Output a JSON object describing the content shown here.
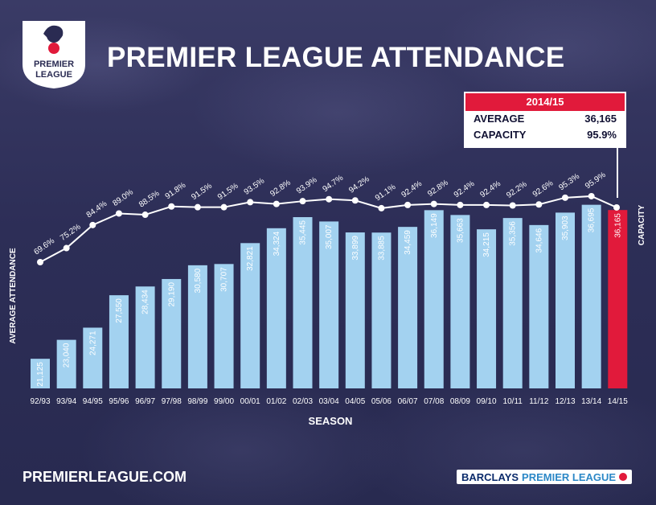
{
  "header": {
    "title": "PREMIER LEAGUE ATTENDANCE",
    "logo_line1": "PREMIER",
    "logo_line2": "LEAGUE"
  },
  "info_box": {
    "season": "2014/15",
    "average_label": "AVERAGE",
    "average_value": "36,165",
    "capacity_label": "CAPACITY",
    "capacity_value": "95.9%"
  },
  "footer": {
    "url": "PREMIERLEAGUE.COM",
    "sponsor_a": "BARCLAYS",
    "sponsor_b": "PREMIER LEAGUE"
  },
  "colors": {
    "bar": "#a3d2f0",
    "highlight": "#e11a3b",
    "line": "#ffffff"
  },
  "chart_data": {
    "type": "bar",
    "title": "PREMIER LEAGUE ATTENDANCE",
    "xlabel": "SEASON",
    "ylabel": "AVERAGE ATTENDANCE",
    "ylabel_right": "CAPACITY",
    "categories": [
      "92/93",
      "93/94",
      "94/95",
      "95/96",
      "96/97",
      "97/98",
      "98/99",
      "99/00",
      "00/01",
      "01/02",
      "02/03",
      "03/04",
      "04/05",
      "05/06",
      "06/07",
      "07/08",
      "08/09",
      "09/10",
      "10/11",
      "11/12",
      "12/13",
      "13/14",
      "14/15"
    ],
    "values": [
      21125,
      23040,
      24271,
      27550,
      28434,
      29190,
      30580,
      30707,
      32821,
      34324,
      35445,
      35007,
      33899,
      33885,
      34459,
      36149,
      35663,
      34215,
      35356,
      34646,
      35903,
      36695,
      36165
    ],
    "value_labels": [
      "21,125",
      "23,040",
      "24,271",
      "27,550",
      "28,434",
      "29,190",
      "30,580",
      "30,707",
      "32,821",
      "34,324",
      "35,445",
      "35,007",
      "33,899",
      "33,885",
      "34,459",
      "36,149",
      "35,663",
      "34,215",
      "35,356",
      "34,646",
      "35,903",
      "36,695",
      "36,165"
    ],
    "capacity": [
      69.6,
      75.2,
      84.4,
      89.0,
      88.5,
      91.8,
      91.5,
      91.5,
      93.5,
      92.8,
      93.9,
      94.7,
      94.2,
      91.1,
      92.4,
      92.8,
      92.4,
      92.4,
      92.2,
      92.6,
      95.3,
      95.9,
      null
    ],
    "capacity_labels": [
      "69.6%",
      "75.2%",
      "84.4%",
      "89.0%",
      "88.5%",
      "91.8%",
      "91.5%",
      "91.5%",
      "93.5%",
      "92.8%",
      "93.9%",
      "94.7%",
      "94.2%",
      "91.1%",
      "92.4%",
      "92.8%",
      "92.4%",
      "92.4%",
      "92.2%",
      "92.6%",
      "95.3%",
      "95.9%",
      ""
    ],
    "highlight_index": 22
  }
}
